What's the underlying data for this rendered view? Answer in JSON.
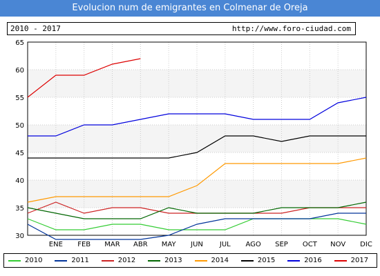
{
  "header": {
    "title": "Evolucion num de emigrantes en Colmenar de Oreja",
    "period": "2010 - 2017",
    "url": "http://www.foro-ciudad.com"
  },
  "chart_data": {
    "type": "line",
    "title": "Evolucion num de emigrantes en Colmenar de Oreja",
    "xlabel": "",
    "ylabel": "",
    "categories": [
      "",
      "ENE",
      "FEB",
      "MAR",
      "ABR",
      "MAY",
      "JUN",
      "JUL",
      "AGO",
      "SEP",
      "OCT",
      "NOV",
      "DIC"
    ],
    "ylim": [
      30,
      65
    ],
    "yticks": [
      30,
      35,
      40,
      45,
      50,
      55,
      60,
      65
    ],
    "grid": true,
    "legend_position": "bottom",
    "series": [
      {
        "name": "2010",
        "color": "#33cc33",
        "values": [
          33,
          31,
          31,
          32,
          32,
          31,
          31,
          31,
          33,
          33,
          33,
          33,
          32
        ]
      },
      {
        "name": "2011",
        "color": "#003399",
        "values": [
          32,
          29,
          29,
          29,
          29,
          30,
          32,
          33,
          33,
          33,
          33,
          34,
          34
        ]
      },
      {
        "name": "2012",
        "color": "#cc2222",
        "values": [
          34,
          36,
          34,
          35,
          35,
          34,
          34,
          34,
          34,
          34,
          35,
          35,
          35
        ]
      },
      {
        "name": "2013",
        "color": "#006600",
        "values": [
          35,
          34,
          33,
          33,
          33,
          35,
          34,
          34,
          34,
          35,
          35,
          35,
          36
        ]
      },
      {
        "name": "2014",
        "color": "#ff9900",
        "values": [
          36,
          37,
          37,
          37,
          37,
          37,
          39,
          43,
          43,
          43,
          43,
          43,
          44
        ]
      },
      {
        "name": "2015",
        "color": "#000000",
        "values": [
          44,
          44,
          44,
          44,
          44,
          44,
          45,
          48,
          48,
          47,
          48,
          48,
          48
        ]
      },
      {
        "name": "2016",
        "color": "#0000dd",
        "values": [
          48,
          48,
          50,
          50,
          51,
          52,
          52,
          52,
          51,
          51,
          51,
          54,
          55
        ]
      },
      {
        "name": "2017",
        "color": "#dd0000",
        "values": [
          55,
          59,
          59,
          61,
          62,
          null,
          null,
          null,
          null,
          null,
          null,
          null,
          null
        ]
      }
    ]
  }
}
